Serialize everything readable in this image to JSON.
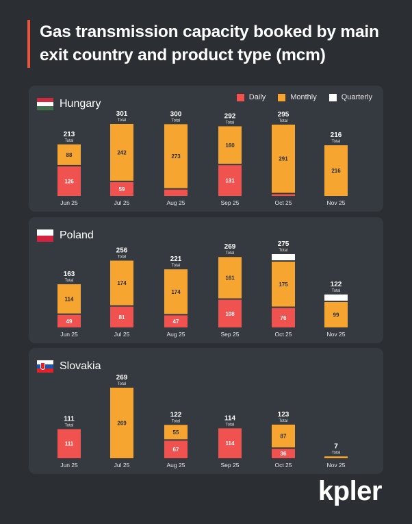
{
  "title": "Gas transmission capacity booked by main exit country and product type (mcm)",
  "brand": "kpler",
  "legend": {
    "daily": "Daily",
    "monthly": "Monthly",
    "quarterly": "Quarterly"
  },
  "colors": {
    "background": "#2b2f34",
    "panel": "#353a40",
    "daily": "#f0524f",
    "monthly": "#f7a531",
    "quarterly": "#ffffff",
    "accent": "#e8553f"
  },
  "chart_data": [
    {
      "type": "bar",
      "stacked": true,
      "title": "Hungary",
      "categories": [
        "Jun 25",
        "Jul 25",
        "Aug 25",
        "Sep 25",
        "Oct 25",
        "Nov 25"
      ],
      "series": [
        {
          "name": "Daily",
          "values": [
            126,
            59,
            27,
            131,
            4,
            0
          ]
        },
        {
          "name": "Monthly",
          "values": [
            88,
            242,
            273,
            160,
            291,
            216
          ]
        },
        {
          "name": "Quarterly",
          "values": [
            0,
            0,
            0,
            0,
            0,
            0
          ]
        }
      ],
      "totals": [
        213,
        301,
        300,
        292,
        295,
        216
      ],
      "total_label": "Total",
      "ylim": [
        0,
        301
      ]
    },
    {
      "type": "bar",
      "stacked": true,
      "title": "Poland",
      "categories": [
        "Jun 25",
        "Jul 25",
        "Aug 25",
        "Sep 25",
        "Oct 25",
        "Nov 25"
      ],
      "series": [
        {
          "name": "Daily",
          "values": [
            49,
            81,
            47,
            108,
            76,
            0
          ]
        },
        {
          "name": "Monthly",
          "values": [
            114,
            174,
            174,
            161,
            175,
            99
          ]
        },
        {
          "name": "Quarterly",
          "values": [
            0,
            0,
            0,
            0,
            24,
            24
          ]
        }
      ],
      "totals": [
        163,
        256,
        221,
        269,
        275,
        122
      ],
      "total_label": "Total",
      "ylim": [
        0,
        275
      ]
    },
    {
      "type": "bar",
      "stacked": true,
      "title": "Slovakia",
      "categories": [
        "Jun 25",
        "Jul 25",
        "Aug 25",
        "Sep 25",
        "Oct 25",
        "Nov 25"
      ],
      "series": [
        {
          "name": "Daily",
          "values": [
            111,
            0,
            67,
            114,
            36,
            0
          ]
        },
        {
          "name": "Monthly",
          "values": [
            0,
            269,
            55,
            0,
            87,
            7
          ]
        },
        {
          "name": "Quarterly",
          "values": [
            0,
            0,
            0,
            0,
            0,
            0
          ]
        }
      ],
      "totals": [
        111,
        269,
        122,
        114,
        123,
        7
      ],
      "total_label": "Total",
      "ylim": [
        0,
        269
      ]
    }
  ]
}
